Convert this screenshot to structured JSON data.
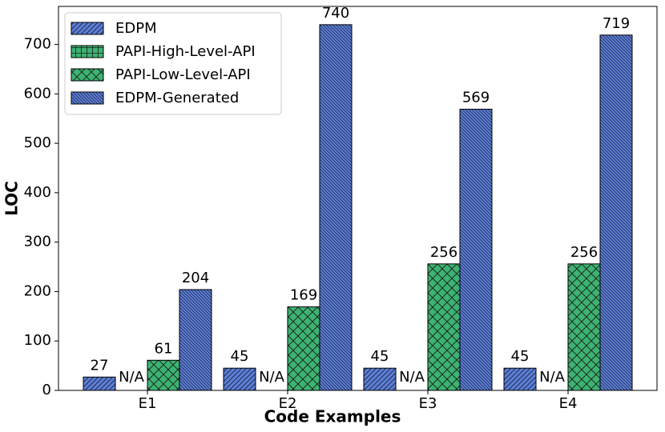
{
  "chart_data": {
    "type": "bar",
    "xlabel": "Code Examples",
    "ylabel": "LOC",
    "categories": [
      "E1",
      "E2",
      "E3",
      "E4"
    ],
    "series": [
      {
        "name": "EDPM",
        "color": "#5b7fd6",
        "hatch": "/",
        "values": [
          27,
          45,
          45,
          45
        ]
      },
      {
        "name": "PAPI-High-Level-API",
        "color": "#3cb371",
        "hatch": "+",
        "values": [
          null,
          null,
          null,
          null
        ],
        "value_labels": [
          "N/A",
          "N/A",
          "N/A",
          "N/A"
        ]
      },
      {
        "name": "PAPI-Low-Level-API",
        "color": "#3cb371",
        "hatch": "x",
        "values": [
          61,
          169,
          256,
          256
        ]
      },
      {
        "name": "EDPM-Generated",
        "color": "#5b7fd6",
        "hatch": "\\",
        "values": [
          204,
          740,
          569,
          719
        ]
      }
    ],
    "ylim": [
      0,
      777
    ],
    "yticks": [
      0,
      100,
      200,
      300,
      400,
      500,
      600,
      700
    ],
    "legend": "upper left"
  }
}
